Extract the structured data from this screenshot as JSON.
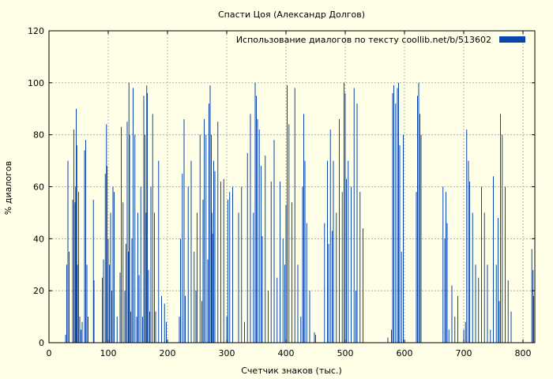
{
  "chart_data": {
    "type": "bar",
    "title": "Спасти Цоя (Александр Долгов)",
    "xlabel": "Счетчик знаков (тыс.)",
    "ylabel": "% диалогов",
    "xlim": [
      0,
      820
    ],
    "ylim": [
      0,
      120
    ],
    "xticks": [
      "0",
      "100",
      "200",
      "300",
      "400",
      "500",
      "600",
      "700",
      "800"
    ],
    "yticks": [
      "0",
      "20",
      "40",
      "60",
      "80",
      "100",
      "120"
    ],
    "grid": true,
    "legend_position": "top-right",
    "series": [
      {
        "name": "Использование диалогов по тексту  coollib.net/b/513602",
        "color": "#0a46aa",
        "bar_width": 1,
        "x": [
          28,
          30,
          32,
          34,
          40,
          42,
          44,
          45,
          46,
          47,
          48,
          50,
          52,
          54,
          56,
          60,
          62,
          64,
          66,
          75,
          76,
          90,
          92,
          95,
          97,
          98,
          100,
          102,
          104,
          106,
          108,
          110,
          115,
          120,
          122,
          125,
          128,
          130,
          132,
          134,
          135,
          136,
          138,
          140,
          142,
          145,
          148,
          150,
          152,
          155,
          158,
          160,
          162,
          164,
          165,
          166,
          168,
          170,
          172,
          175,
          178,
          180,
          185,
          190,
          195,
          198,
          220,
          222,
          225,
          228,
          230,
          235,
          240,
          245,
          248,
          250,
          255,
          258,
          260,
          262,
          265,
          268,
          270,
          272,
          274,
          275,
          276,
          278,
          280,
          285,
          290,
          295,
          300,
          302,
          305,
          310,
          320,
          325,
          330,
          335,
          340,
          345,
          348,
          350,
          352,
          355,
          358,
          360,
          365,
          370,
          375,
          380,
          385,
          390,
          395,
          398,
          400,
          402,
          405,
          410,
          415,
          420,
          425,
          428,
          430,
          432,
          435,
          440,
          448,
          450,
          465,
          470,
          472,
          475,
          478,
          480,
          485,
          490,
          495,
          498,
          500,
          502,
          505,
          510,
          515,
          518,
          520,
          525,
          530,
          572,
          578,
          580,
          582,
          585,
          588,
          590,
          592,
          595,
          598,
          620,
          622,
          624,
          626,
          628,
          665,
          668,
          670,
          672,
          675,
          680,
          685,
          690,
          700,
          703,
          705,
          708,
          710,
          715,
          720,
          725,
          730,
          735,
          740,
          745,
          750,
          755,
          758,
          760,
          762,
          765,
          770,
          775,
          780,
          815,
          817,
          818
        ],
        "values": [
          3,
          30,
          70,
          35,
          55,
          82,
          54,
          60,
          90,
          76,
          30,
          58,
          10,
          5,
          8,
          74,
          78,
          30,
          10,
          55,
          24,
          25,
          32,
          65,
          84,
          68,
          40,
          30,
          50,
          20,
          60,
          58,
          10,
          27,
          83,
          54,
          20,
          38,
          85,
          35,
          100,
          80,
          12,
          40,
          98,
          80,
          10,
          50,
          26,
          60,
          10,
          95,
          80,
          50,
          99,
          96,
          28,
          12,
          60,
          88,
          50,
          12,
          70,
          18,
          15,
          8,
          10,
          40,
          65,
          86,
          18,
          60,
          70,
          35,
          20,
          50,
          80,
          16,
          55,
          86,
          80,
          32,
          92,
          99,
          80,
          50,
          42,
          70,
          66,
          85,
          62,
          63,
          10,
          55,
          58,
          60,
          50,
          60,
          8,
          73,
          88,
          50,
          100,
          95,
          86,
          82,
          68,
          41,
          72,
          20,
          62,
          78,
          25,
          62,
          40,
          30,
          53,
          99,
          84,
          54,
          98,
          30,
          10,
          60,
          88,
          70,
          46,
          20,
          4,
          3,
          46,
          70,
          38,
          82,
          43,
          70,
          50,
          86,
          58,
          100,
          96,
          63,
          70,
          60,
          98,
          20,
          92,
          58,
          44,
          2,
          5,
          96,
          99,
          92,
          98,
          100,
          76,
          35,
          80,
          58,
          95,
          100,
          88,
          80,
          60,
          40,
          58,
          46,
          5,
          22,
          10,
          18,
          5,
          8,
          82,
          70,
          62,
          50,
          30,
          25,
          60,
          50,
          30,
          5,
          64,
          30,
          48,
          16,
          88,
          80,
          60,
          24,
          12,
          36,
          28,
          18
        ]
      }
    ]
  }
}
